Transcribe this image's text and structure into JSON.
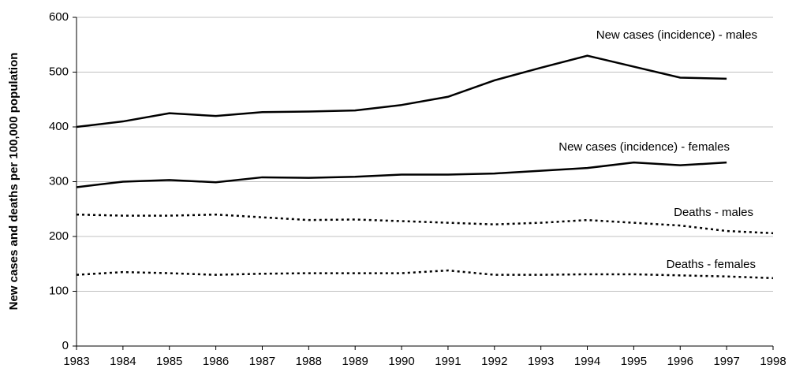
{
  "chart_data": {
    "type": "line",
    "y_label": "New cases and deaths per 100,000 population",
    "x": [
      1983,
      1984,
      1985,
      1986,
      1987,
      1988,
      1989,
      1990,
      1991,
      1992,
      1993,
      1994,
      1995,
      1996,
      1997,
      1998
    ],
    "xlim": [
      1983,
      1998
    ],
    "ylim": [
      0,
      600
    ],
    "yticks": [
      0,
      100,
      200,
      300,
      400,
      500,
      600
    ],
    "grid": true,
    "series": [
      {
        "name": "New cases (incidence) - males",
        "color": "#000000",
        "line_style": "solid",
        "values": [
          400,
          410,
          425,
          420,
          427,
          428,
          430,
          440,
          455,
          485,
          508,
          530,
          510,
          490,
          488,
          null
        ]
      },
      {
        "name": "New cases (incidence) - females",
        "color": "#000000",
        "line_style": "solid",
        "values": [
          290,
          300,
          303,
          299,
          308,
          307,
          309,
          313,
          313,
          315,
          320,
          325,
          335,
          330,
          335,
          null
        ]
      },
      {
        "name": "Deaths - males",
        "color": "#000000",
        "line_style": "dotted",
        "values": [
          240,
          238,
          238,
          240,
          235,
          230,
          231,
          228,
          225,
          222,
          225,
          230,
          225,
          220,
          210,
          206
        ]
      },
      {
        "name": "Deaths - females",
        "color": "#000000",
        "line_style": "dotted",
        "values": [
          130,
          135,
          133,
          130,
          132,
          133,
          133,
          133,
          138,
          130,
          130,
          131,
          131,
          129,
          127,
          124
        ]
      }
    ]
  }
}
